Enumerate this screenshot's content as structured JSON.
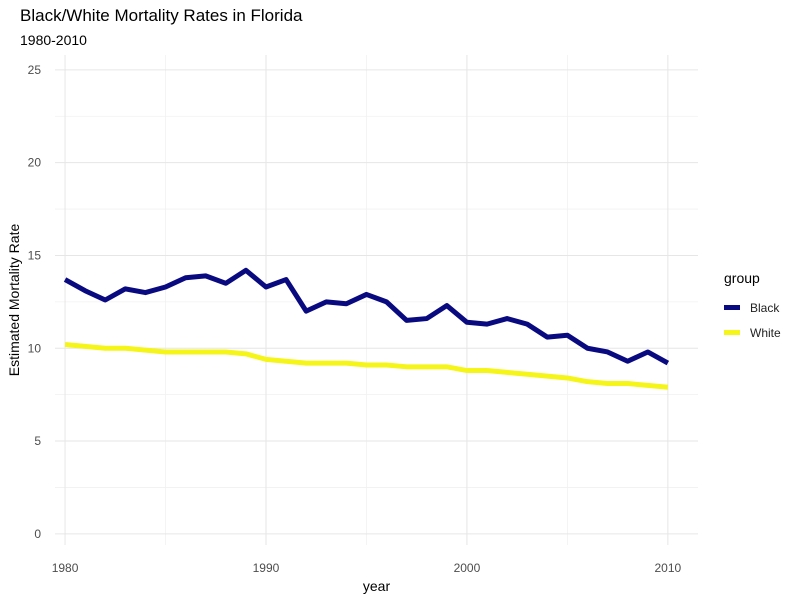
{
  "chart_data": {
    "type": "line",
    "title": "Black/White Mortality Rates in Florida",
    "subtitle": "1980-2010",
    "xlabel": "year",
    "ylabel": "Estimated Mortality Rate",
    "xlim": [
      1979.5,
      2011.5
    ],
    "ylim": [
      -0.6,
      25.8
    ],
    "x_ticks": [
      1980,
      1990,
      2000,
      2010
    ],
    "y_ticks": [
      0,
      5,
      10,
      15,
      20,
      25
    ],
    "grid": true,
    "legend": {
      "title": "group",
      "position": "right"
    },
    "x": [
      1980,
      1981,
      1982,
      1983,
      1984,
      1985,
      1986,
      1987,
      1988,
      1989,
      1990,
      1991,
      1992,
      1993,
      1994,
      1995,
      1996,
      1997,
      1998,
      1999,
      2000,
      2001,
      2002,
      2003,
      2004,
      2005,
      2006,
      2007,
      2008,
      2009,
      2010
    ],
    "series": [
      {
        "name": "Black",
        "color": "#0a0a80",
        "values": [
          13.7,
          13.1,
          12.6,
          13.2,
          13.0,
          13.3,
          13.8,
          13.9,
          13.5,
          14.2,
          13.3,
          13.7,
          12.0,
          12.5,
          12.4,
          12.9,
          12.5,
          11.5,
          11.6,
          12.3,
          11.4,
          11.3,
          11.6,
          11.3,
          10.6,
          10.7,
          10.0,
          9.8,
          9.3,
          9.8,
          9.2
        ]
      },
      {
        "name": "White",
        "color": "#f5f51a",
        "values": [
          10.2,
          10.1,
          10.0,
          10.0,
          9.9,
          9.8,
          9.8,
          9.8,
          9.8,
          9.7,
          9.4,
          9.3,
          9.2,
          9.2,
          9.2,
          9.1,
          9.1,
          9.0,
          9.0,
          9.0,
          8.8,
          8.8,
          8.7,
          8.6,
          8.5,
          8.4,
          8.2,
          8.1,
          8.1,
          8.0,
          7.9
        ]
      }
    ]
  }
}
